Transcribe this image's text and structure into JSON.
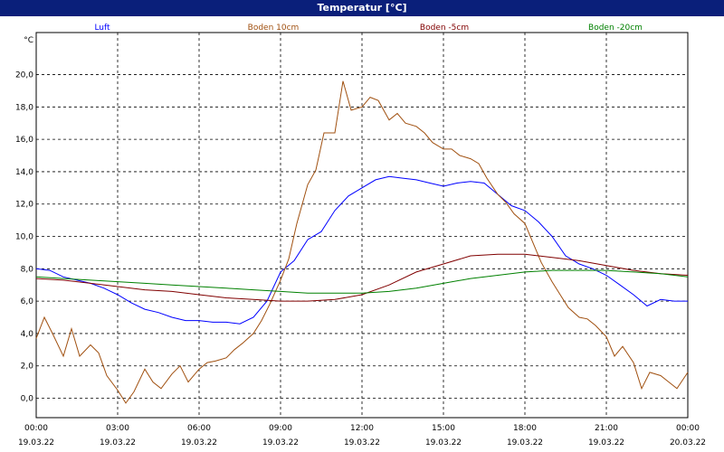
{
  "window": {
    "title": "Temperatur [°C]"
  },
  "chart_data": {
    "type": "line",
    "title": "Temperatur [°C]",
    "ylabel": "°C",
    "ylim": [
      -1.2,
      22.6
    ],
    "xlim": [
      "19.03.22 00:00",
      "20.03.22 00:00"
    ],
    "grid": true,
    "legend_position": "top",
    "y_ticks": [
      "0,0",
      "2,0",
      "4,0",
      "6,0",
      "8,0",
      "10,0",
      "12,0",
      "14,0",
      "16,0",
      "18,0",
      "20,0"
    ],
    "x_ticks": [
      {
        "time": "00:00",
        "date": "19.03.22"
      },
      {
        "time": "03:00",
        "date": "19.03.22"
      },
      {
        "time": "06:00",
        "date": "19.03.22"
      },
      {
        "time": "09:00",
        "date": "19.03.22"
      },
      {
        "time": "12:00",
        "date": "19.03.22"
      },
      {
        "time": "15:00",
        "date": "19.03.22"
      },
      {
        "time": "18:00",
        "date": "19.03.22"
      },
      {
        "time": "21:00",
        "date": "19.03.22"
      },
      {
        "time": "00:00",
        "date": "20.03.22"
      }
    ],
    "series": [
      {
        "name": "Luft",
        "color": "#0000ff",
        "x": [
          0,
          0.5,
          1,
          1.5,
          2,
          2.5,
          3,
          3.5,
          4,
          4.5,
          5,
          5.5,
          6,
          6.5,
          7,
          7.5,
          8,
          8.5,
          9,
          9.5,
          10,
          10.5,
          11,
          11.5,
          12,
          12.5,
          13,
          13.5,
          14,
          14.5,
          15,
          15.5,
          16,
          16.5,
          17,
          17.5,
          18,
          18.5,
          19,
          19.5,
          20,
          20.5,
          21,
          21.5,
          22,
          22.5,
          23,
          23.5,
          24
        ],
        "y": [
          8.0,
          7.9,
          7.5,
          7.3,
          7.1,
          6.8,
          6.4,
          5.9,
          5.5,
          5.3,
          5.0,
          4.8,
          4.8,
          4.7,
          4.7,
          4.6,
          5.0,
          6.0,
          7.8,
          8.5,
          9.8,
          10.3,
          11.6,
          12.5,
          13.0,
          13.5,
          13.7,
          13.6,
          13.5,
          13.3,
          13.1,
          13.3,
          13.4,
          13.3,
          12.6,
          11.9,
          11.6,
          10.9,
          10.0,
          8.8,
          8.3,
          8.0,
          7.6,
          7.0,
          6.4,
          5.7,
          6.1,
          6.0,
          6.0
        ]
      },
      {
        "name": "Boden 10cm",
        "color": "#a05010",
        "x": [
          0,
          0.3,
          0.6,
          1,
          1.3,
          1.6,
          2,
          2.3,
          2.6,
          3,
          3.3,
          3.6,
          4,
          4.3,
          4.6,
          5,
          5.3,
          5.6,
          6,
          6.3,
          6.6,
          7,
          7.3,
          7.6,
          8,
          8.3,
          8.6,
          9,
          9.3,
          9.6,
          10,
          10.3,
          10.6,
          11,
          11.3,
          11.6,
          12,
          12.3,
          12.6,
          13,
          13.3,
          13.6,
          14,
          14.3,
          14.6,
          15,
          15.3,
          15.6,
          16,
          16.3,
          16.6,
          17,
          17.3,
          17.6,
          18,
          18.3,
          18.6,
          19,
          19.3,
          19.6,
          20,
          20.3,
          20.6,
          21,
          21.3,
          21.6,
          22,
          22.3,
          22.6,
          23,
          23.3,
          23.6,
          24
        ],
        "y": [
          3.7,
          5.0,
          4.0,
          2.6,
          4.3,
          2.6,
          3.3,
          2.8,
          1.4,
          0.5,
          -0.3,
          0.4,
          1.8,
          1.0,
          0.6,
          1.5,
          2.0,
          1.0,
          1.8,
          2.2,
          2.3,
          2.5,
          3.0,
          3.4,
          4.0,
          4.8,
          5.8,
          7.3,
          8.6,
          10.8,
          13.2,
          14.1,
          16.4,
          16.4,
          19.6,
          17.8,
          18.0,
          18.6,
          18.4,
          17.2,
          17.6,
          17.0,
          16.8,
          16.4,
          15.8,
          15.4,
          15.4,
          15.0,
          14.8,
          14.5,
          13.6,
          12.6,
          12.1,
          11.4,
          10.8,
          9.6,
          8.4,
          7.2,
          6.4,
          5.6,
          5.0,
          4.9,
          4.5,
          3.8,
          2.6,
          3.2,
          2.2,
          0.6,
          1.6,
          1.4,
          1.0,
          0.6,
          1.6
        ]
      },
      {
        "name": "Boden -5cm",
        "color": "#800000",
        "x": [
          0,
          1,
          2,
          3,
          4,
          5,
          6,
          7,
          8,
          9,
          10,
          11,
          12,
          13,
          14,
          15,
          16,
          17,
          18,
          19,
          20,
          21,
          22,
          23,
          24
        ],
        "y": [
          7.4,
          7.3,
          7.1,
          6.9,
          6.7,
          6.6,
          6.4,
          6.2,
          6.1,
          6.0,
          6.0,
          6.1,
          6.4,
          7.0,
          7.8,
          8.3,
          8.8,
          8.9,
          8.9,
          8.7,
          8.5,
          8.2,
          7.9,
          7.7,
          7.6
        ]
      },
      {
        "name": "Boden -20cm",
        "color": "#008000",
        "x": [
          0,
          1,
          2,
          3,
          4,
          5,
          6,
          7,
          8,
          9,
          10,
          11,
          12,
          13,
          14,
          15,
          16,
          17,
          18,
          19,
          20,
          21,
          22,
          23,
          24
        ],
        "y": [
          7.5,
          7.4,
          7.3,
          7.2,
          7.1,
          7.0,
          6.9,
          6.8,
          6.7,
          6.6,
          6.5,
          6.5,
          6.5,
          6.6,
          6.8,
          7.1,
          7.4,
          7.6,
          7.8,
          7.9,
          7.9,
          7.9,
          7.8,
          7.7,
          7.5
        ]
      }
    ]
  }
}
